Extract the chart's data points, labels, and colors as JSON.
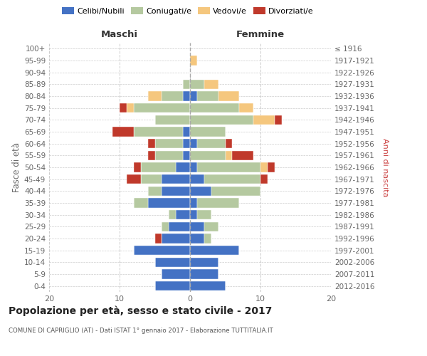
{
  "age_groups": [
    "0-4",
    "5-9",
    "10-14",
    "15-19",
    "20-24",
    "25-29",
    "30-34",
    "35-39",
    "40-44",
    "45-49",
    "50-54",
    "55-59",
    "60-64",
    "65-69",
    "70-74",
    "75-79",
    "80-84",
    "85-89",
    "90-94",
    "95-99",
    "100+"
  ],
  "birth_years": [
    "2012-2016",
    "2007-2011",
    "2002-2006",
    "1997-2001",
    "1992-1996",
    "1987-1991",
    "1982-1986",
    "1977-1981",
    "1972-1976",
    "1967-1971",
    "1962-1966",
    "1957-1961",
    "1952-1956",
    "1947-1951",
    "1942-1946",
    "1937-1941",
    "1932-1936",
    "1927-1931",
    "1922-1926",
    "1917-1921",
    "≤ 1916"
  ],
  "colors": {
    "celibi": "#4472C4",
    "coniugati": "#b5c9a0",
    "vedovi": "#f5c77e",
    "divorziati": "#c0392b"
  },
  "maschi": {
    "celibi": [
      5,
      4,
      5,
      8,
      4,
      3,
      2,
      6,
      4,
      4,
      2,
      1,
      1,
      1,
      0,
      0,
      1,
      0,
      0,
      0,
      0
    ],
    "coniugati": [
      0,
      0,
      0,
      0,
      0,
      1,
      1,
      2,
      2,
      3,
      5,
      4,
      4,
      7,
      5,
      8,
      3,
      1,
      0,
      0,
      0
    ],
    "vedovi": [
      0,
      0,
      0,
      0,
      0,
      0,
      0,
      0,
      0,
      0,
      0,
      0,
      0,
      0,
      0,
      1,
      2,
      0,
      0,
      0,
      0
    ],
    "divorziati": [
      0,
      0,
      0,
      0,
      1,
      0,
      0,
      0,
      0,
      2,
      1,
      1,
      1,
      3,
      0,
      1,
      0,
      0,
      0,
      0,
      0
    ]
  },
  "femmine": {
    "celibi": [
      5,
      4,
      4,
      7,
      2,
      2,
      1,
      1,
      3,
      2,
      1,
      0,
      1,
      0,
      0,
      0,
      1,
      0,
      0,
      0,
      0
    ],
    "coniugati": [
      0,
      0,
      0,
      0,
      1,
      2,
      2,
      6,
      7,
      8,
      9,
      5,
      4,
      5,
      9,
      7,
      3,
      2,
      0,
      0,
      0
    ],
    "vedovi": [
      0,
      0,
      0,
      0,
      0,
      0,
      0,
      0,
      0,
      0,
      1,
      1,
      0,
      0,
      3,
      2,
      3,
      2,
      0,
      1,
      0
    ],
    "divorziati": [
      0,
      0,
      0,
      0,
      0,
      0,
      0,
      0,
      0,
      1,
      1,
      3,
      1,
      0,
      1,
      0,
      0,
      0,
      0,
      0,
      0
    ]
  },
  "title": "Popolazione per età, sesso e stato civile - 2017",
  "subtitle": "COMUNE DI CAPRIGLIO (AT) - Dati ISTAT 1° gennaio 2017 - Elaborazione TUTTITALIA.IT",
  "xlabel_left": "Maschi",
  "xlabel_right": "Femmine",
  "ylabel_left": "Fasce di età",
  "ylabel_right": "Anni di nascita",
  "legend_labels": [
    "Celibi/Nubili",
    "Coniugati/e",
    "Vedovi/e",
    "Divorziati/e"
  ],
  "xlim": 20,
  "background_color": "#ffffff",
  "grid_color": "#cccccc"
}
